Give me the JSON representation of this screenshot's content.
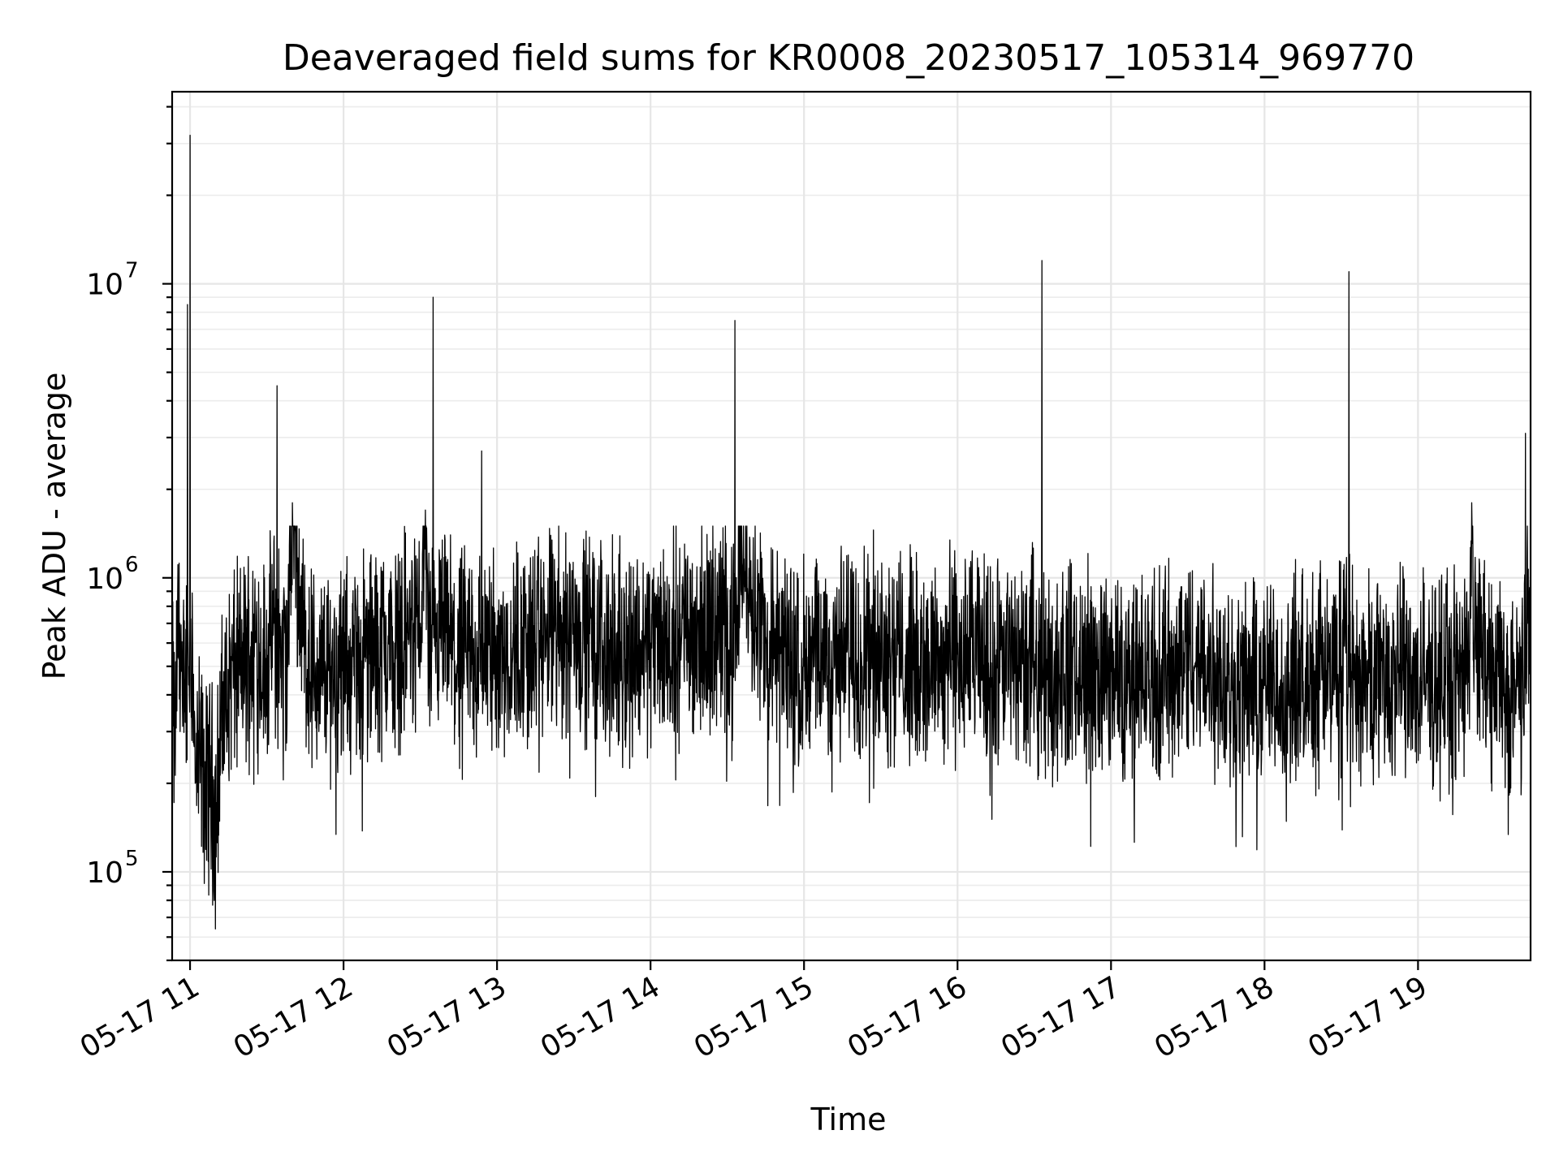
{
  "chart_data": {
    "type": "line",
    "title": "Deaveraged field sums for KR0008_20230517_105314_969770",
    "xlabel": "Time",
    "ylabel": "Peak ADU - average",
    "y_scale": "log",
    "ylim": [
      50000,
      45000000
    ],
    "xlim": [
      "2023-05-17 10:53",
      "2023-05-17 19:44"
    ],
    "grid": true,
    "series_color": "#000000",
    "x_ticks": [
      {
        "value": "2023-05-17 11:00",
        "label": "05-17 11"
      },
      {
        "value": "2023-05-17 12:00",
        "label": "05-17 12"
      },
      {
        "value": "2023-05-17 13:00",
        "label": "05-17 13"
      },
      {
        "value": "2023-05-17 14:00",
        "label": "05-17 14"
      },
      {
        "value": "2023-05-17 15:00",
        "label": "05-17 15"
      },
      {
        "value": "2023-05-17 16:00",
        "label": "05-17 16"
      },
      {
        "value": "2023-05-17 17:00",
        "label": "05-17 17"
      },
      {
        "value": "2023-05-17 18:00",
        "label": "05-17 18"
      },
      {
        "value": "2023-05-17 19:00",
        "label": "05-17 19"
      }
    ],
    "y_ticks": [
      {
        "value": 100000,
        "base": "10",
        "exp": "5"
      },
      {
        "value": 1000000,
        "base": "10",
        "exp": "6"
      },
      {
        "value": 10000000,
        "base": "10",
        "exp": "7"
      }
    ],
    "series": [
      {
        "x": [
          "2023-05-17 10:53",
          "2023-05-17 10:54",
          "2023-05-17 10:55",
          "2023-05-17 10:56",
          "2023-05-17 10:57",
          "2023-05-17 10:58",
          "2023-05-17 10:59",
          "2023-05-17 11:00",
          "2023-05-17 11:01",
          "2023-05-17 11:02",
          "2023-05-17 11:04",
          "2023-05-17 11:06",
          "2023-05-17 11:08",
          "2023-05-17 11:10",
          "2023-05-17 11:12",
          "2023-05-17 11:15",
          "2023-05-17 11:20",
          "2023-05-17 11:25",
          "2023-05-17 11:30",
          "2023-05-17 11:33",
          "2023-05-17 11:34",
          "2023-05-17 11:35",
          "2023-05-17 11:38",
          "2023-05-17 11:40",
          "2023-05-17 11:45",
          "2023-05-17 11:50",
          "2023-05-17 11:55",
          "2023-05-17 12:00",
          "2023-05-17 12:10",
          "2023-05-17 12:20",
          "2023-05-17 12:25",
          "2023-05-17 12:30",
          "2023-05-17 12:32",
          "2023-05-17 12:33",
          "2023-05-17 12:35",
          "2023-05-17 12:40",
          "2023-05-17 12:45",
          "2023-05-17 12:50",
          "2023-05-17 12:54",
          "2023-05-17 12:55",
          "2023-05-17 13:00",
          "2023-05-17 13:15",
          "2023-05-17 13:30",
          "2023-05-17 13:45",
          "2023-05-17 14:00",
          "2023-05-17 14:15",
          "2023-05-17 14:30",
          "2023-05-17 14:33",
          "2023-05-17 14:34",
          "2023-05-17 14:35",
          "2023-05-17 14:45",
          "2023-05-17 15:00",
          "2023-05-17 15:15",
          "2023-05-17 15:30",
          "2023-05-17 15:45",
          "2023-05-17 16:00",
          "2023-05-17 16:15",
          "2023-05-17 16:30",
          "2023-05-17 16:33",
          "2023-05-17 16:34",
          "2023-05-17 16:35",
          "2023-05-17 16:45",
          "2023-05-17 17:00",
          "2023-05-17 17:15",
          "2023-05-17 17:30",
          "2023-05-17 17:45",
          "2023-05-17 18:00",
          "2023-05-17 18:15",
          "2023-05-17 18:30",
          "2023-05-17 18:33",
          "2023-05-17 18:34",
          "2023-05-17 18:35",
          "2023-05-17 18:45",
          "2023-05-17 19:00",
          "2023-05-17 19:15",
          "2023-05-17 19:20",
          "2023-05-17 19:21",
          "2023-05-17 19:22",
          "2023-05-17 19:30",
          "2023-05-17 19:38",
          "2023-05-17 19:41",
          "2023-05-17 19:42",
          "2023-05-17 19:43",
          "2023-05-17 19:44"
        ],
        "y": [
          450000,
          250000,
          600000,
          700000,
          380000,
          450000,
          8500000,
          32000000,
          600000,
          200000,
          250000,
          180000,
          220000,
          150000,
          300000,
          450000,
          500000,
          600000,
          500000,
          700000,
          4500000,
          600000,
          500000,
          1800000,
          550000,
          450000,
          500000,
          480000,
          550000,
          600000,
          650000,
          700000,
          1700000,
          600000,
          9000000,
          650000,
          500000,
          600000,
          2700000,
          600000,
          550000,
          600000,
          700000,
          550000,
          600000,
          650000,
          700000,
          7500000,
          650000,
          1400000,
          600000,
          500000,
          550000,
          600000,
          500000,
          550000,
          500000,
          520000,
          12000000,
          500000,
          450000,
          500000,
          480000,
          450000,
          520000,
          460000,
          430000,
          440000,
          500000,
          11000000,
          480000,
          450000,
          470000,
          440000,
          450000,
          550000,
          1800000,
          600000,
          450000,
          420000,
          480000,
          3100000,
          700000,
          650000
        ]
      }
    ]
  }
}
